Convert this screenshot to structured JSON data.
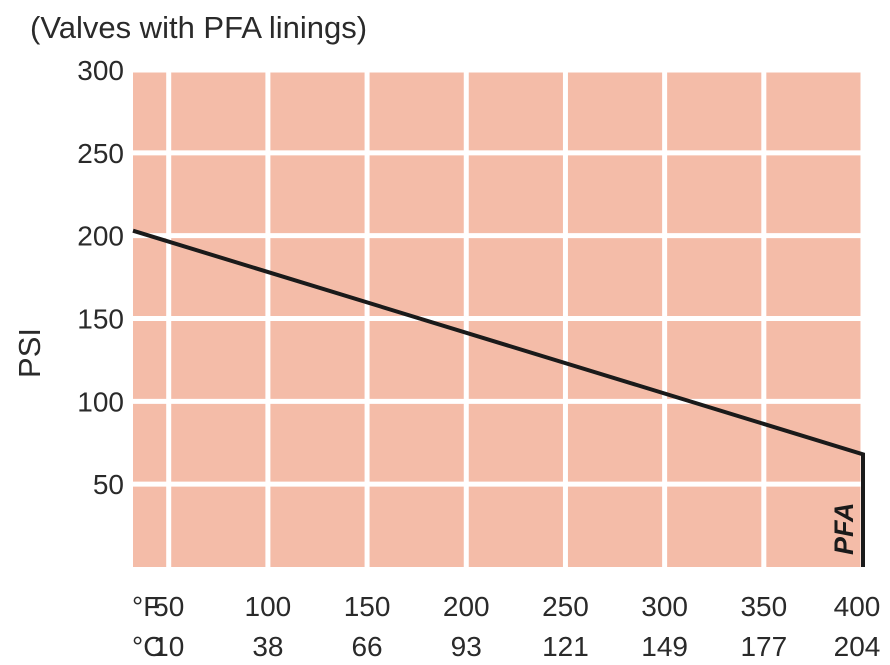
{
  "chart_data": {
    "type": "line",
    "subtitle": "(Valves with PFA linings)",
    "ylabel": "PSI",
    "xlabel_units": [
      "°F",
      "°C"
    ],
    "xlim_F": [
      32,
      400
    ],
    "ylim": [
      0,
      300
    ],
    "x_ticks_F": [
      "50",
      "100",
      "150",
      "200",
      "250",
      "300",
      "350",
      "400"
    ],
    "x_ticks_C": [
      "10",
      "38",
      "66",
      "93",
      "121",
      "149",
      "177",
      "204"
    ],
    "y_ticks": [
      "50",
      "100",
      "150",
      "200",
      "250",
      "300"
    ],
    "grid": true,
    "background_color": "#f4bca8",
    "grid_color": "#ffffff",
    "line_color": "#1a1a1a",
    "series": [
      {
        "name": "PFA",
        "x": [
          32,
          400,
          400
        ],
        "y": [
          203,
          68,
          0
        ]
      }
    ]
  }
}
